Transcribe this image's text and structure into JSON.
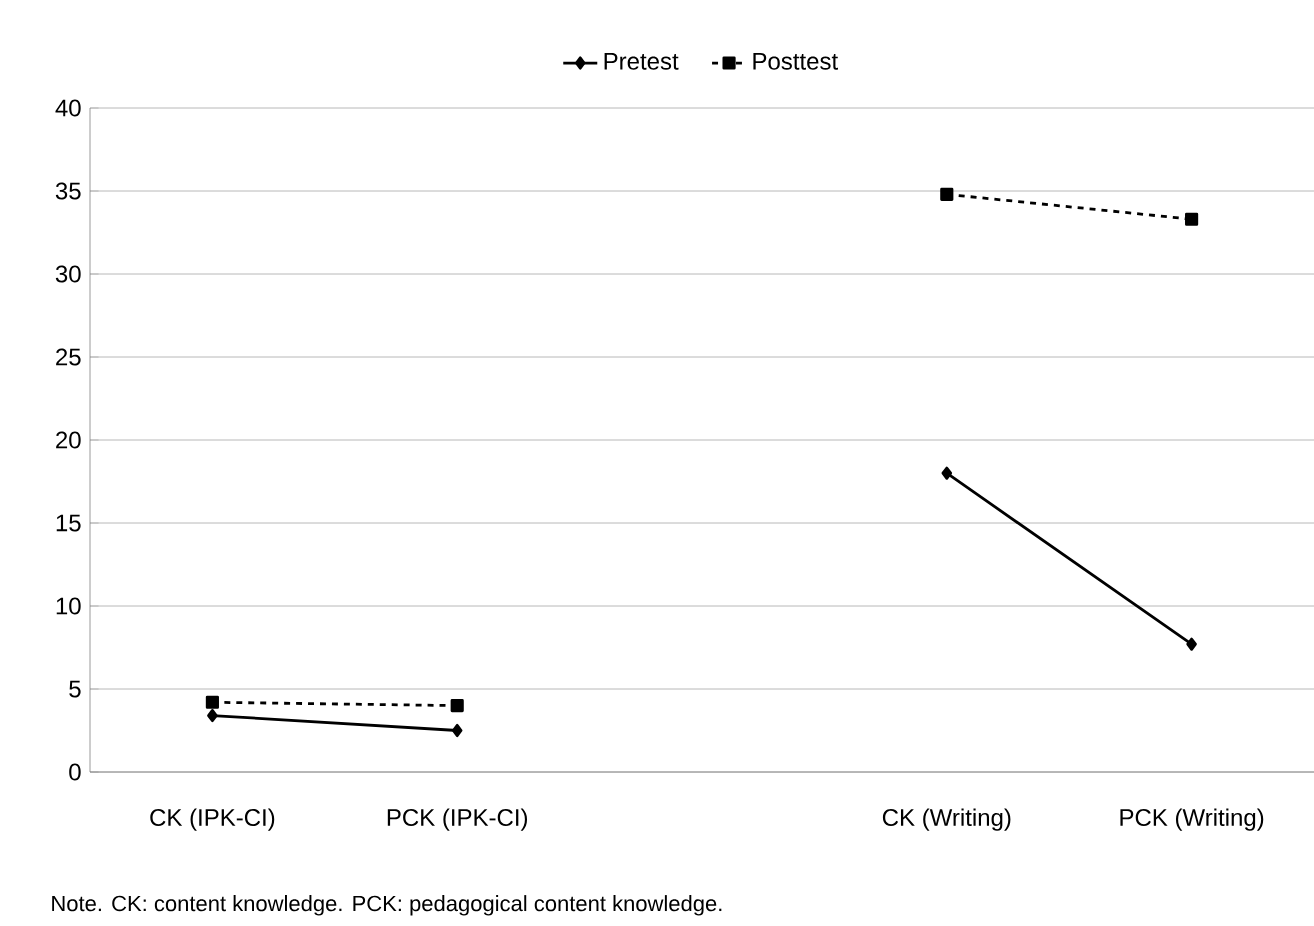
{
  "chart_data": {
    "type": "line",
    "categories": [
      "CK (IPK-CI)",
      "PCK (IPK-CI)",
      null,
      "CK (Writing)",
      "PCK (Writing)"
    ],
    "series": [
      {
        "name": "Pretest",
        "color": "#000000",
        "marker": "diamond",
        "line_style": "solid",
        "values": [
          3.4,
          2.5,
          null,
          18.0,
          7.7
        ]
      },
      {
        "name": "Posttest",
        "color": "#000000",
        "marker": "square",
        "line_style": "dashed",
        "values": [
          4.2,
          4.0,
          null,
          34.8,
          33.3
        ]
      }
    ],
    "ylim": [
      0,
      40
    ],
    "yticks": [
      0,
      5,
      10,
      15,
      20,
      25,
      30,
      35,
      40
    ],
    "grid": "y",
    "legend": "top",
    "annotations": [
      "Note. CK: content knowledge. PCK: pedagogical content knowledge."
    ]
  }
}
